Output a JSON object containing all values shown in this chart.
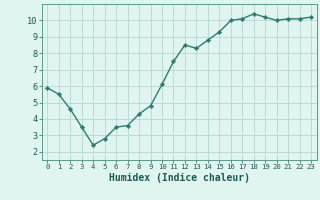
{
  "x": [
    0,
    1,
    2,
    3,
    4,
    5,
    6,
    7,
    8,
    9,
    10,
    11,
    12,
    13,
    14,
    15,
    16,
    17,
    18,
    19,
    20,
    21,
    22,
    23
  ],
  "y": [
    5.9,
    5.5,
    4.6,
    3.5,
    2.4,
    2.8,
    3.5,
    3.6,
    4.3,
    4.8,
    6.1,
    7.5,
    8.5,
    8.3,
    8.8,
    9.3,
    10.0,
    10.1,
    10.4,
    10.2,
    10.0,
    10.1,
    10.1,
    10.2
  ],
  "xlabel": "Humidex (Indice chaleur)",
  "xlim": [
    -0.5,
    23.5
  ],
  "ylim": [
    1.5,
    11.0
  ],
  "yticks": [
    2,
    3,
    4,
    5,
    6,
    7,
    8,
    9,
    10
  ],
  "xticks": [
    0,
    1,
    2,
    3,
    4,
    5,
    6,
    7,
    8,
    9,
    10,
    11,
    12,
    13,
    14,
    15,
    16,
    17,
    18,
    19,
    20,
    21,
    22,
    23
  ],
  "line_color": "#2e7d6e",
  "marker_color": "#2e7d6e",
  "bg_color": "#e0f5f0",
  "grid_color": "#b8d8d2",
  "axes_color": "#5a9a8a",
  "font_color": "#1a5a50",
  "marker": "D",
  "markersize": 2.2,
  "linewidth": 1.0
}
